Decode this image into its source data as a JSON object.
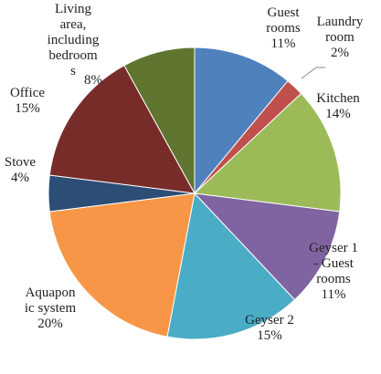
{
  "chart_data": {
    "type": "pie",
    "categories": [
      "Guest\nrooms",
      "Laundry\nroom",
      "Kitchen",
      "Geyser 1\n- Guest\nrooms",
      "Geyser 2",
      "Aquapon\nic system",
      "Stove",
      "Office",
      "Living\narea,\nincluding\nbedroom\ns"
    ],
    "values": [
      11,
      2,
      14,
      11,
      15,
      20,
      4,
      15,
      8
    ],
    "value_labels": [
      "11%",
      "2%",
      "14%",
      "11%",
      "15%",
      "20%",
      "4%",
      "15%",
      "8%"
    ],
    "colors": [
      "#4f81bd",
      "#c0504d",
      "#9bbb59",
      "#8064a2",
      "#4bacc6",
      "#f79646",
      "#2c4d75",
      "#772c2a",
      "#5f7530"
    ]
  }
}
